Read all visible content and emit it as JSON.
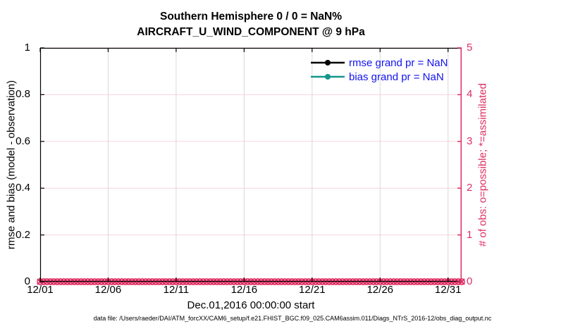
{
  "figure": {
    "title_line1": "Southern Hemisphere 0 / 0 = NaN%",
    "title_line2": "AIRCRAFT_U_WIND_COMPONENT @ 9 hPa",
    "footer": "data file: /Users/raeder/DAI/ATM_forcXX/CAM6_setup/f.e21.FHIST_BGC.f09_025.CAM6assim.011/Diags_NTrS_2016-12/obs_diag_output.nc"
  },
  "colors": {
    "axis_black": "#000000",
    "right_axis_pink": "#de2e63",
    "grid_pink": "#f8d3de",
    "grid_gray": "#d9d9d9",
    "legend_text_blue": "#1212ee",
    "rmse_black": "#000000",
    "bias_teal": "#13968b"
  },
  "legend": {
    "items": [
      {
        "label": "rmse grand pr = NaN",
        "color": "#000000",
        "marker": "circle"
      },
      {
        "label": "bias grand pr = NaN",
        "color": "#13968b",
        "marker": "circle"
      }
    ]
  },
  "chart_data": {
    "type": "line",
    "title": "Southern Hemisphere 0 / 0 = NaN%",
    "subtitle": "AIRCRAFT_U_WIND_COMPONENT @ 9 hPa",
    "xlabel": "Dec.01,2016 00:00:00 start",
    "x_axis": {
      "tick_labels": [
        "12/01",
        "12/06",
        "12/11",
        "12/16",
        "12/21",
        "12/26",
        "12/31"
      ],
      "tick_days": [
        0,
        5,
        10,
        15,
        20,
        25,
        30
      ],
      "range_days": [
        0,
        31
      ],
      "grid": true
    },
    "left_axis": {
      "label": "rmse and bias (model - observation)",
      "ticks": [
        0,
        0.2,
        0.4,
        0.6,
        0.8,
        1
      ],
      "tick_labels": [
        "0",
        "0.2",
        "0.4",
        "0.6",
        "0.8",
        "1"
      ],
      "range": [
        0,
        1
      ],
      "color": "#000000",
      "grid": true
    },
    "right_axis": {
      "label": "# of obs: o=possible; *=assimilated",
      "ticks": [
        0,
        1,
        2,
        3,
        4,
        5
      ],
      "tick_labels": [
        "0",
        "1",
        "2",
        "3",
        "4",
        "5"
      ],
      "range": [
        0,
        5
      ],
      "color": "#de2e63"
    },
    "legend_position": "top-right-inside",
    "series": [
      {
        "name": "rmse grand pr",
        "stat_value": "NaN",
        "color": "#000000",
        "marker": "filled-circle",
        "axis": "left",
        "values": []
      },
      {
        "name": "bias grand pr",
        "stat_value": "NaN",
        "color": "#13968b",
        "marker": "filled-circle",
        "axis": "left",
        "values": []
      },
      {
        "name": "# of obs possible",
        "color": "#de2e63",
        "marker": "o",
        "axis": "right",
        "step_days": 0.25,
        "values": [
          0,
          0,
          0,
          0,
          0,
          0,
          0,
          0,
          0,
          0,
          0,
          0,
          0,
          0,
          0,
          0,
          0,
          0,
          0,
          0,
          0,
          0,
          0,
          0,
          0,
          0,
          0,
          0,
          0,
          0,
          0,
          0,
          0,
          0,
          0,
          0,
          0,
          0,
          0,
          0,
          0,
          0,
          0,
          0,
          0,
          0,
          0,
          0,
          0,
          0,
          0,
          0,
          0,
          0,
          0,
          0,
          0,
          0,
          0,
          0,
          0,
          0,
          0,
          0,
          0,
          0,
          0,
          0,
          0,
          0,
          0,
          0,
          0,
          0,
          0,
          0,
          0,
          0,
          0,
          0,
          0,
          0,
          0,
          0,
          0,
          0,
          0,
          0,
          0,
          0,
          0,
          0,
          0,
          0,
          0,
          0,
          0,
          0,
          0,
          0,
          0,
          0,
          0,
          0,
          0,
          0,
          0,
          0,
          0,
          0,
          0,
          0,
          0,
          0,
          0,
          0,
          0,
          0,
          0,
          0,
          0,
          0,
          0,
          0,
          0
        ]
      },
      {
        "name": "# of obs assimilated",
        "color": "#de2e63",
        "marker": "x",
        "axis": "right",
        "step_days": 0.25,
        "values": [
          0,
          0,
          0,
          0,
          0,
          0,
          0,
          0,
          0,
          0,
          0,
          0,
          0,
          0,
          0,
          0,
          0,
          0,
          0,
          0,
          0,
          0,
          0,
          0,
          0,
          0,
          0,
          0,
          0,
          0,
          0,
          0,
          0,
          0,
          0,
          0,
          0,
          0,
          0,
          0,
          0,
          0,
          0,
          0,
          0,
          0,
          0,
          0,
          0,
          0,
          0,
          0,
          0,
          0,
          0,
          0,
          0,
          0,
          0,
          0,
          0,
          0,
          0,
          0,
          0,
          0,
          0,
          0,
          0,
          0,
          0,
          0,
          0,
          0,
          0,
          0,
          0,
          0,
          0,
          0,
          0,
          0,
          0,
          0,
          0,
          0,
          0,
          0,
          0,
          0,
          0,
          0,
          0,
          0,
          0,
          0,
          0,
          0,
          0,
          0,
          0,
          0,
          0,
          0,
          0,
          0,
          0,
          0,
          0,
          0,
          0,
          0,
          0,
          0,
          0,
          0,
          0,
          0,
          0,
          0,
          0,
          0,
          0,
          0,
          0
        ]
      }
    ]
  }
}
